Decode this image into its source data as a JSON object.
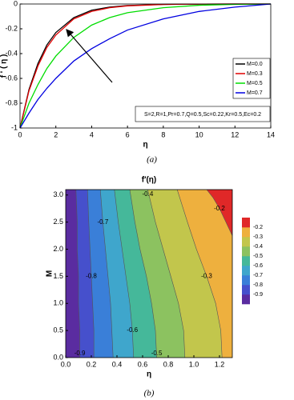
{
  "chart_data": [
    {
      "type": "line",
      "xlabel": "η",
      "ylabel": "f ' ( η )",
      "caption": "(a)",
      "x": [
        0,
        0.5,
        1,
        1.5,
        2,
        3,
        4,
        5,
        6,
        8,
        10,
        12,
        14
      ],
      "series": [
        {
          "name": "M=0.0",
          "color": "#000000",
          "values": [
            -1,
            -0.69,
            -0.48,
            -0.33,
            -0.23,
            -0.11,
            -0.05,
            -0.025,
            -0.012,
            -0.003,
            -0.001,
            0,
            0
          ]
        },
        {
          "name": "M=0.3",
          "color": "#e00000",
          "values": [
            -1,
            -0.7,
            -0.5,
            -0.35,
            -0.25,
            -0.12,
            -0.06,
            -0.03,
            -0.015,
            -0.004,
            -0.001,
            0,
            0
          ]
        },
        {
          "name": "M=0.5",
          "color": "#00dd00",
          "values": [
            -1,
            -0.8,
            -0.65,
            -0.52,
            -0.42,
            -0.27,
            -0.17,
            -0.11,
            -0.07,
            -0.03,
            -0.01,
            -0.003,
            0
          ]
        },
        {
          "name": "M=0.7",
          "color": "#0000e0",
          "values": [
            -1,
            -0.88,
            -0.77,
            -0.68,
            -0.6,
            -0.46,
            -0.36,
            -0.28,
            -0.21,
            -0.12,
            -0.06,
            -0.025,
            0
          ]
        }
      ],
      "xlim": [
        0,
        14
      ],
      "xticks": [
        0,
        2,
        4,
        6,
        8,
        10,
        12,
        14
      ],
      "ylim": [
        -1,
        0
      ],
      "yticks": [
        0,
        -0.2,
        -0.4,
        -0.6,
        -0.8,
        -1
      ],
      "legend": "right",
      "annotation": "S=2,R=1,Pr=0.7,Q=0.5,Sc=0.22,Kr=0.5,Ec=0.2"
    },
    {
      "type": "contour",
      "title": "f′(η)",
      "xlabel": "η",
      "ylabel": "M",
      "caption": "(b)",
      "xlim": [
        0,
        1.3
      ],
      "xticks": [
        {
          "value": 0,
          "label": "0.0"
        },
        0.2,
        0.4,
        0.6,
        0.8,
        {
          "value": 1,
          "label": "1.0"
        },
        1.2
      ],
      "ylim": [
        0,
        3.1
      ],
      "yticks": [
        {
          "value": 0,
          "label": "0.0"
        },
        0.5,
        {
          "value": 1,
          "label": "1.0"
        },
        1.5,
        {
          "value": 2,
          "label": "2.0"
        },
        2.5,
        {
          "value": 3,
          "label": "3.0"
        }
      ],
      "band_colors": [
        "#5a2ca0",
        "#4650cc",
        "#3a7fd8",
        "#3fa6cc",
        "#45b89a",
        "#8cc260",
        "#c2c64c",
        "#eeb03e",
        "#e02828"
      ],
      "contour_lines": [
        {
          "level": -0.9,
          "x": [
            0.11,
            0.11,
            0.1,
            0.1,
            0.09,
            0.09,
            0.08
          ],
          "y": [
            0,
            0.5,
            1,
            1.5,
            2,
            2.5,
            3.1
          ]
        },
        {
          "level": -0.8,
          "x": [
            0.22,
            0.22,
            0.21,
            0.2,
            0.19,
            0.18,
            0.17
          ],
          "y": [
            0,
            0.5,
            1,
            1.5,
            2,
            2.5,
            3.1
          ]
        },
        {
          "level": -0.7,
          "x": [
            0.37,
            0.36,
            0.35,
            0.33,
            0.31,
            0.29,
            0.27
          ],
          "y": [
            0,
            0.5,
            1,
            1.5,
            2,
            2.5,
            3.1
          ]
        },
        {
          "level": -0.6,
          "x": [
            0.53,
            0.52,
            0.5,
            0.47,
            0.44,
            0.41,
            0.38
          ],
          "y": [
            0,
            0.5,
            1,
            1.5,
            2,
            2.5,
            3.1
          ]
        },
        {
          "level": -0.5,
          "x": [
            0.71,
            0.7,
            0.67,
            0.63,
            0.58,
            0.54,
            0.5
          ],
          "y": [
            0,
            0.5,
            1,
            1.5,
            2,
            2.5,
            3.1
          ]
        },
        {
          "level": -0.4,
          "x": [
            0.93,
            0.92,
            0.88,
            0.82,
            0.76,
            0.7,
            0.64
          ],
          "y": [
            0,
            0.5,
            1,
            1.5,
            2,
            2.5,
            3.1
          ]
        },
        {
          "level": -0.3,
          "x": [
            1.22,
            1.21,
            1.17,
            1.1,
            1.02,
            0.95,
            0.87
          ],
          "y": [
            0,
            0.5,
            1,
            1.5,
            2,
            2.5,
            3.1
          ]
        },
        {
          "level": -0.2,
          "x": [
            1.3,
            1.25,
            1.2,
            1.15,
            1.1
          ],
          "y": [
            2.25,
            2.5,
            2.75,
            2.95,
            3.1
          ]
        }
      ]
    }
  ]
}
